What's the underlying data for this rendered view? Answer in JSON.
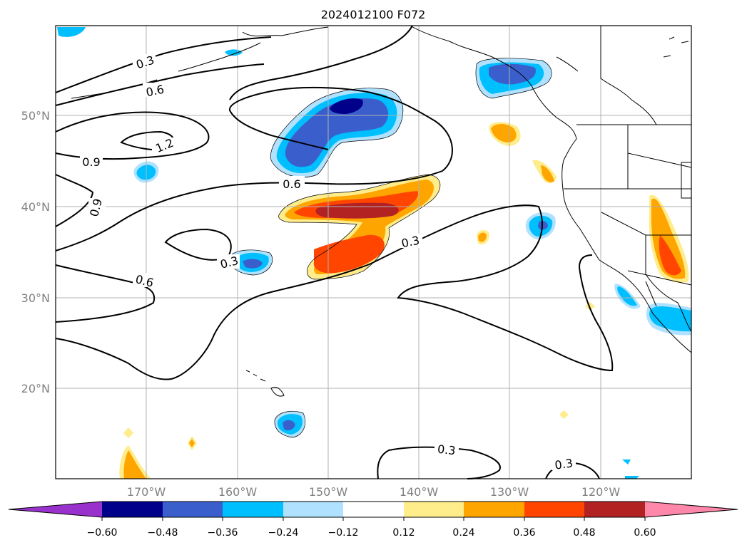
{
  "title": "2024012100 F072",
  "lat_labels": [
    "50°N",
    "40°N",
    "30°N",
    "20°N"
  ],
  "lon_labels": [
    "170°W",
    "160°W",
    "150°W",
    "140°W",
    "130°W",
    "120°W"
  ],
  "contour_labels": [
    "0.3",
    "0.6",
    "1.2",
    "0.9",
    "0.9",
    "0.6",
    "0.3",
    "0.6",
    "0.3",
    "0.3",
    "0.3"
  ],
  "colorbar": {
    "ticks": [
      "−0.60",
      "−0.48",
      "−0.36",
      "−0.24",
      "−0.12",
      "0.12",
      "0.24",
      "0.36",
      "0.48",
      "0.60"
    ],
    "colors": [
      "#9932cc",
      "#00008b",
      "#3a5fcd",
      "#00bfff",
      "#b0e2ff",
      "#ffffff",
      "#ffec8b",
      "#ffa500",
      "#ff4500",
      "#b22222",
      "#ff88aa"
    ]
  }
}
